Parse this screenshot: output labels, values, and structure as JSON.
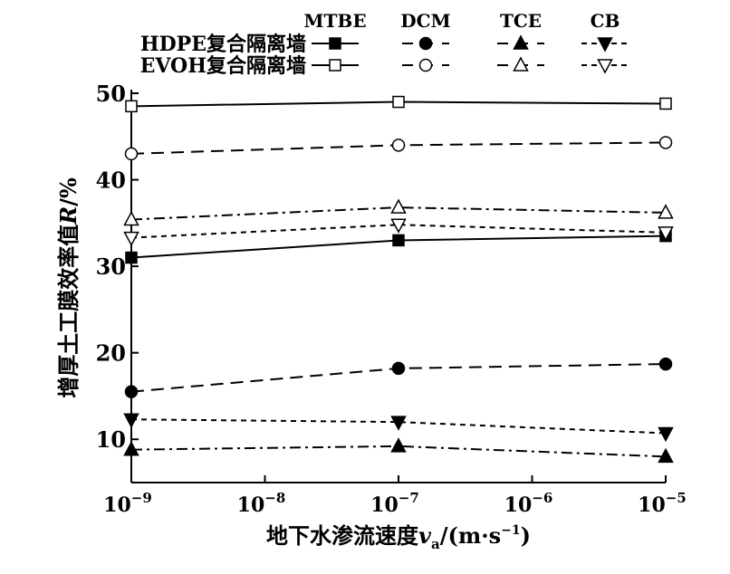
{
  "chart_data": {
    "type": "line",
    "title": "",
    "xlabel": "地下水渗流速度v_a/(m·s^-1)",
    "xlabel_parts": {
      "main": "地下水渗流速度",
      "var": "v",
      "sub": "a",
      "unit": "/(m·s",
      "exp": "−1",
      "close": ")"
    },
    "ylabel": "增厚土工膜效率值R/%",
    "ylabel_parts": {
      "main": "增厚土工膜效率值",
      "var": "R",
      "unit": "/%"
    },
    "x_scale": "log",
    "x": [
      1e-09,
      1e-07,
      1e-05
    ],
    "xlim": [
      1e-09,
      1e-05
    ],
    "ylim": [
      5,
      50
    ],
    "x_ticks": [
      {
        "base": "10",
        "exp": "−9"
      },
      {
        "base": "10",
        "exp": "−8"
      },
      {
        "base": "10",
        "exp": "−7"
      },
      {
        "base": "10",
        "exp": "−6"
      },
      {
        "base": "10",
        "exp": "−5"
      }
    ],
    "y_ticks": [
      "10",
      "20",
      "30",
      "40",
      "50"
    ],
    "legend": {
      "placement": "top",
      "columns": [
        "MTBE",
        "DCM",
        "TCE",
        "CB"
      ],
      "rows": [
        "HDPE复合隔离墙",
        "EVOH复合隔离墙"
      ]
    },
    "series": [
      {
        "name": "HDPE复合隔离墙 MTBE",
        "row": 0,
        "col": 0,
        "marker": "square",
        "filled": true,
        "dash": "solid",
        "values": [
          31.0,
          33.0,
          33.5
        ]
      },
      {
        "name": "HDPE复合隔离墙 DCM",
        "row": 0,
        "col": 1,
        "marker": "circle",
        "filled": true,
        "dash": "dash",
        "values": [
          15.5,
          18.2,
          18.7
        ]
      },
      {
        "name": "HDPE复合隔离墙 TCE",
        "row": 0,
        "col": 2,
        "marker": "triangle-up",
        "filled": true,
        "dash": "dashdot",
        "values": [
          8.8,
          9.2,
          8.0
        ]
      },
      {
        "name": "HDPE复合隔离墙 CB",
        "row": 0,
        "col": 3,
        "marker": "triangle-down",
        "filled": true,
        "dash": "short",
        "values": [
          12.3,
          12.0,
          10.7
        ]
      },
      {
        "name": "EVOH复合隔离墙 MTBE",
        "row": 1,
        "col": 0,
        "marker": "square",
        "filled": false,
        "dash": "solid",
        "values": [
          48.5,
          49.0,
          48.8
        ]
      },
      {
        "name": "EVOH复合隔离墙 DCM",
        "row": 1,
        "col": 1,
        "marker": "circle",
        "filled": false,
        "dash": "dash",
        "values": [
          43.0,
          44.0,
          44.3
        ]
      },
      {
        "name": "EVOH复合隔离墙 TCE",
        "row": 1,
        "col": 2,
        "marker": "triangle-up",
        "filled": false,
        "dash": "dashdot",
        "values": [
          35.4,
          36.8,
          36.2
        ]
      },
      {
        "name": "EVOH复合隔离墙 CB",
        "row": 1,
        "col": 3,
        "marker": "triangle-down",
        "filled": false,
        "dash": "short",
        "values": [
          33.3,
          34.8,
          33.9
        ]
      }
    ]
  }
}
